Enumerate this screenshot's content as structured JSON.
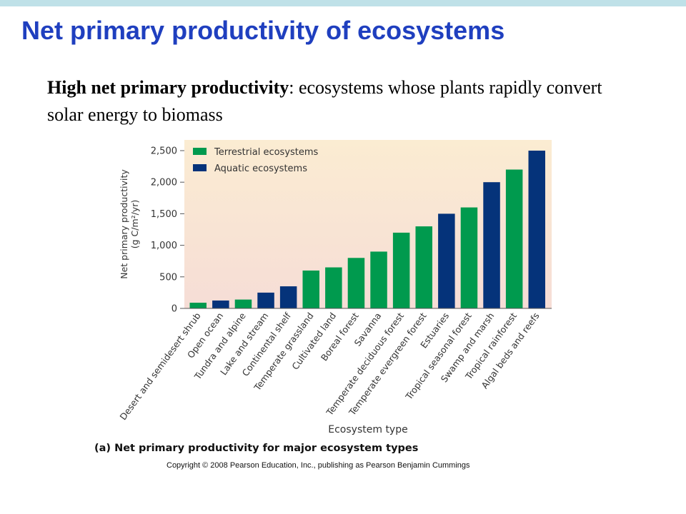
{
  "slide": {
    "title": "Net primary productivity of ecosystems",
    "subtitle_bold": "High net primary productivity",
    "subtitle_rest": ": ecosystems whose plants rapidly convert solar energy to biomass",
    "caption": "(a) Net primary productivity for major ecosystem types",
    "copyright": "Copyright © 2008 Pearson Education, Inc., publishing as Pearson Benjamin Cummings"
  },
  "colors": {
    "terrestrial": "#009a4e",
    "aquatic": "#05337a",
    "title": "#1f3fbf",
    "plot_bg_top": "#fbecd2",
    "plot_bg_bottom": "#f6ddd6"
  },
  "chart_data": {
    "type": "bar",
    "title": "",
    "xlabel": "Ecosystem type",
    "ylabel_line1": "Net primary productivity",
    "ylabel_line2": "(g C/m²/yr)",
    "ylim": [
      0,
      2500
    ],
    "yticks": [
      0,
      500,
      1000,
      1500,
      2000,
      2500
    ],
    "ytick_labels": [
      "0",
      "500",
      "1,000",
      "1,500",
      "2,000",
      "2,500"
    ],
    "grid": false,
    "legend": {
      "placement": "top-left",
      "entries": [
        {
          "name": "Terrestrial ecosystems",
          "color": "#009a4e"
        },
        {
          "name": "Aquatic ecosystems",
          "color": "#05337a"
        }
      ]
    },
    "categories": [
      "Desert and semidesert shrub",
      "Open ocean",
      "Tundra and alpine",
      "Lake and stream",
      "Continental shelf",
      "Temperate grassland",
      "Cultivated land",
      "Boreal forest",
      "Savanna",
      "Temperate deciduous forest",
      "Temperate evergreen forest",
      "Estuaries",
      "Tropical seasonal forest",
      "Swamp and marsh",
      "Tropical rainforest",
      "Algal beds and reefs"
    ],
    "values": [
      90,
      125,
      140,
      250,
      350,
      600,
      650,
      800,
      900,
      1200,
      1300,
      1500,
      1600,
      2000,
      2200,
      2500
    ],
    "groups": [
      "terrestrial",
      "aquatic",
      "terrestrial",
      "aquatic",
      "aquatic",
      "terrestrial",
      "terrestrial",
      "terrestrial",
      "terrestrial",
      "terrestrial",
      "terrestrial",
      "aquatic",
      "terrestrial",
      "aquatic",
      "terrestrial",
      "aquatic"
    ]
  }
}
